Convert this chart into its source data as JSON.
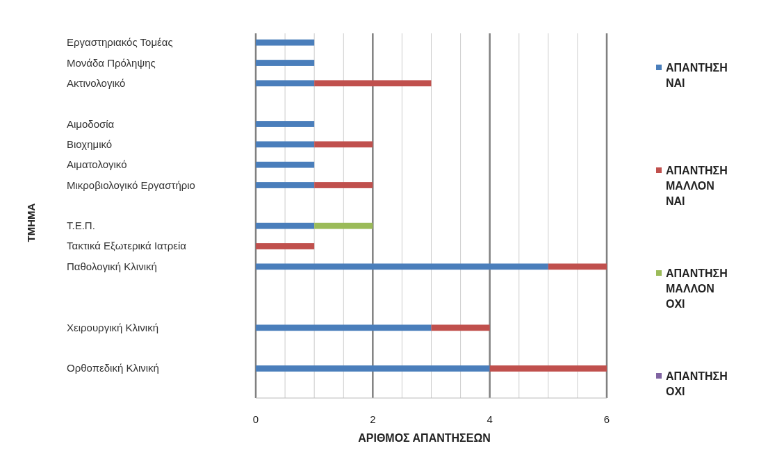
{
  "chart_data": {
    "type": "bar",
    "orientation": "horizontal",
    "stacked": true,
    "xlabel": "ΑΡΙΘΜΟΣ ΑΠΑΝΤΗΣΕΩΝ",
    "ylabel": "ΤΜΗΜΑ",
    "categories": [
      "Εργαστηριακός Τομέας",
      "Μονάδα Πρόληψης",
      "Ακτινολογικό",
      null,
      "Αιμοδοσία",
      "Βιοχημικό",
      "Αιματολογικό",
      "Μικροβιολογικό Εργαστήριο",
      null,
      "Τ.Ε.Π.",
      "Τακτικά Εξωτερικά Ιατρεία",
      "Παθολογική Κλινική",
      null,
      null,
      "Χειρουργική Κλινική",
      null,
      "Ορθοπεδική Κλινική",
      null
    ],
    "series": [
      {
        "name": "ΑΠΑΝΤΗΣΗ ΝΑΙ",
        "color": "#4a7ebb",
        "values": [
          1,
          1,
          1,
          null,
          1,
          1,
          1,
          1,
          null,
          1,
          null,
          5,
          null,
          null,
          3,
          null,
          4,
          null
        ]
      },
      {
        "name": "ΑΠΑΝΤΗΣΗ ΜΑΛΛΟΝ ΝΑΙ",
        "color": "#c0504d",
        "values": [
          null,
          null,
          2,
          null,
          null,
          1,
          null,
          1,
          null,
          null,
          1,
          1,
          null,
          null,
          1,
          null,
          2,
          null
        ]
      },
      {
        "name": "ΑΠΑΝΤΗΣΗ ΜΑΛΛΟΝ ΟΧΙ",
        "color": "#9bbb59",
        "values": [
          null,
          null,
          null,
          null,
          null,
          null,
          null,
          null,
          null,
          1,
          null,
          null,
          null,
          null,
          null,
          null,
          null,
          null
        ]
      },
      {
        "name": "ΑΠΑΝΤΗΣΗ ΟΧΙ",
        "color": "#8064a2",
        "values": [
          null,
          null,
          null,
          null,
          null,
          null,
          null,
          null,
          null,
          null,
          null,
          null,
          null,
          null,
          null,
          null,
          null,
          null
        ]
      }
    ],
    "xlim": [
      0,
      6
    ],
    "xticks": [
      0,
      {
        "value": 0.5,
        "label": null
      },
      {
        "value": 1,
        "label": null
      },
      {
        "value": 1.5,
        "label": null
      },
      2,
      {
        "value": 2.5,
        "label": null
      },
      {
        "value": 3,
        "label": null
      },
      {
        "value": 3.5,
        "label": null
      },
      4,
      {
        "value": 4.5,
        "label": null
      },
      {
        "value": 5,
        "label": null
      },
      {
        "value": 5.5,
        "label": null
      },
      6
    ],
    "grid": "x",
    "legend": "right"
  }
}
